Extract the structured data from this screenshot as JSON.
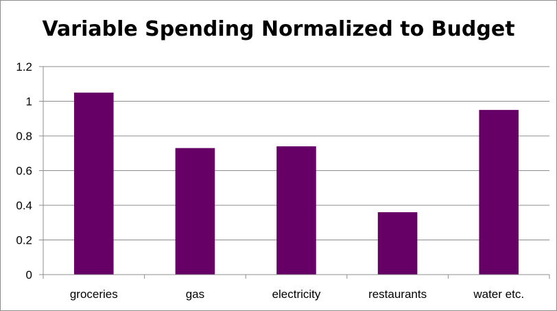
{
  "chart_data": {
    "type": "bar",
    "title": "Variable Spending Normalized to Budget",
    "categories": [
      "groceries",
      "gas",
      "electricity",
      "restaurants",
      "water etc."
    ],
    "values": [
      1.05,
      0.73,
      0.74,
      0.36,
      0.95
    ],
    "ylim": [
      0,
      1.2
    ],
    "yticks": [
      0,
      0.2,
      0.4,
      0.6,
      0.8,
      1,
      1.2
    ],
    "ytick_labels": [
      "0",
      "0.2",
      "0.4",
      "0.6",
      "0.8",
      "1",
      "1.2"
    ],
    "xlabel": "",
    "ylabel": "",
    "grid": true,
    "legend": "none",
    "bar_color": "#660066",
    "grid_color": "#8c8c8c"
  }
}
